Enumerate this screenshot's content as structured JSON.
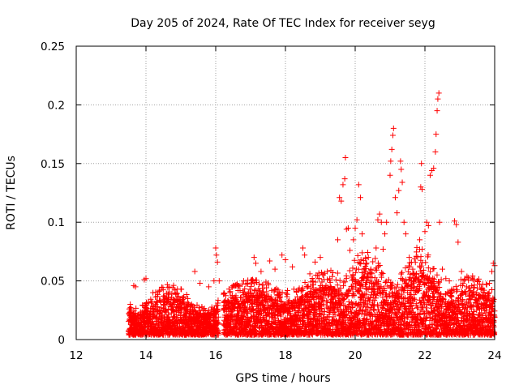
{
  "chart_data": {
    "type": "scatter",
    "title": "Day 205 of 2024, Rate Of TEC Index for receiver seyg",
    "xlabel": "GPS time / hours",
    "ylabel": "ROTI / TECUs",
    "xlim": [
      12,
      24
    ],
    "ylim": [
      0,
      0.25
    ],
    "xticks": [
      12,
      14,
      16,
      18,
      20,
      22,
      24
    ],
    "xtick_labels": [
      "12",
      "14",
      "16",
      "18",
      "20",
      "22",
      "24"
    ],
    "yticks": [
      0,
      0.05,
      0.1,
      0.15,
      0.2,
      0.25
    ],
    "ytick_labels": [
      "0",
      "0.05",
      "0.1",
      "0.15",
      "0.2",
      "0.25"
    ],
    "grid": true,
    "marker": "+",
    "color": "#ff0000",
    "data_start_hour": 13.5,
    "series": [
      {
        "name": "ROTI",
        "description": "dense scatter of ROTI samples from ~13.5 h to 24 h; envelope points listed",
        "points": [
          [
            13.55,
            0.03
          ],
          [
            13.6,
            0.012
          ],
          [
            13.65,
            0.046
          ],
          [
            13.7,
            0.045
          ],
          [
            13.75,
            0.02
          ],
          [
            13.95,
            0.051
          ],
          [
            14.0,
            0.052
          ],
          [
            14.2,
            0.04
          ],
          [
            14.5,
            0.03
          ],
          [
            14.9,
            0.03
          ],
          [
            15.2,
            0.035
          ],
          [
            15.4,
            0.058
          ],
          [
            15.55,
            0.048
          ],
          [
            15.8,
            0.045
          ],
          [
            15.95,
            0.05
          ],
          [
            16.0,
            0.078
          ],
          [
            16.02,
            0.072
          ],
          [
            16.05,
            0.066
          ],
          [
            16.1,
            0.05
          ],
          [
            16.5,
            0.046
          ],
          [
            16.8,
            0.05
          ],
          [
            17.1,
            0.07
          ],
          [
            17.15,
            0.065
          ],
          [
            17.3,
            0.058
          ],
          [
            17.55,
            0.067
          ],
          [
            17.7,
            0.06
          ],
          [
            17.9,
            0.072
          ],
          [
            18.0,
            0.068
          ],
          [
            18.2,
            0.062
          ],
          [
            18.5,
            0.078
          ],
          [
            18.55,
            0.072
          ],
          [
            18.7,
            0.056
          ],
          [
            18.85,
            0.066
          ],
          [
            19.0,
            0.07
          ],
          [
            19.2,
            0.058
          ],
          [
            19.5,
            0.085
          ],
          [
            19.55,
            0.121
          ],
          [
            19.6,
            0.118
          ],
          [
            19.65,
            0.132
          ],
          [
            19.7,
            0.137
          ],
          [
            19.72,
            0.155
          ],
          [
            19.75,
            0.094
          ],
          [
            19.8,
            0.095
          ],
          [
            19.85,
            0.076
          ],
          [
            19.95,
            0.085
          ],
          [
            20.0,
            0.095
          ],
          [
            20.05,
            0.102
          ],
          [
            20.1,
            0.132
          ],
          [
            20.15,
            0.121
          ],
          [
            20.2,
            0.09
          ],
          [
            20.3,
            0.069
          ],
          [
            20.45,
            0.06
          ],
          [
            20.6,
            0.078
          ],
          [
            20.65,
            0.102
          ],
          [
            20.7,
            0.107
          ],
          [
            20.75,
            0.1
          ],
          [
            20.8,
            0.077
          ],
          [
            20.85,
            0.09
          ],
          [
            20.9,
            0.1
          ],
          [
            21.0,
            0.14
          ],
          [
            21.02,
            0.152
          ],
          [
            21.05,
            0.162
          ],
          [
            21.08,
            0.174
          ],
          [
            21.1,
            0.18
          ],
          [
            21.15,
            0.121
          ],
          [
            21.2,
            0.108
          ],
          [
            21.25,
            0.127
          ],
          [
            21.3,
            0.152
          ],
          [
            21.32,
            0.145
          ],
          [
            21.35,
            0.134
          ],
          [
            21.4,
            0.1
          ],
          [
            21.45,
            0.09
          ],
          [
            21.55,
            0.07
          ],
          [
            21.65,
            0.06
          ],
          [
            21.75,
            0.071
          ],
          [
            21.85,
            0.085
          ],
          [
            21.88,
            0.13
          ],
          [
            21.9,
            0.15
          ],
          [
            21.92,
            0.128
          ],
          [
            22.0,
            0.092
          ],
          [
            22.05,
            0.1
          ],
          [
            22.1,
            0.097
          ],
          [
            22.15,
            0.14
          ],
          [
            22.2,
            0.144
          ],
          [
            22.25,
            0.146
          ],
          [
            22.3,
            0.16
          ],
          [
            22.32,
            0.175
          ],
          [
            22.35,
            0.195
          ],
          [
            22.37,
            0.205
          ],
          [
            22.4,
            0.21
          ],
          [
            22.42,
            0.1
          ],
          [
            22.5,
            0.06
          ],
          [
            22.6,
            0.052
          ],
          [
            22.7,
            0.05
          ],
          [
            22.85,
            0.101
          ],
          [
            22.9,
            0.098
          ],
          [
            22.95,
            0.083
          ],
          [
            23.05,
            0.058
          ],
          [
            23.2,
            0.045
          ],
          [
            23.35,
            0.052
          ],
          [
            23.5,
            0.05
          ],
          [
            23.7,
            0.042
          ],
          [
            23.85,
            0.048
          ],
          [
            23.92,
            0.058
          ],
          [
            23.96,
            0.065
          ],
          [
            24.0,
            0.063
          ]
        ]
      }
    ]
  }
}
